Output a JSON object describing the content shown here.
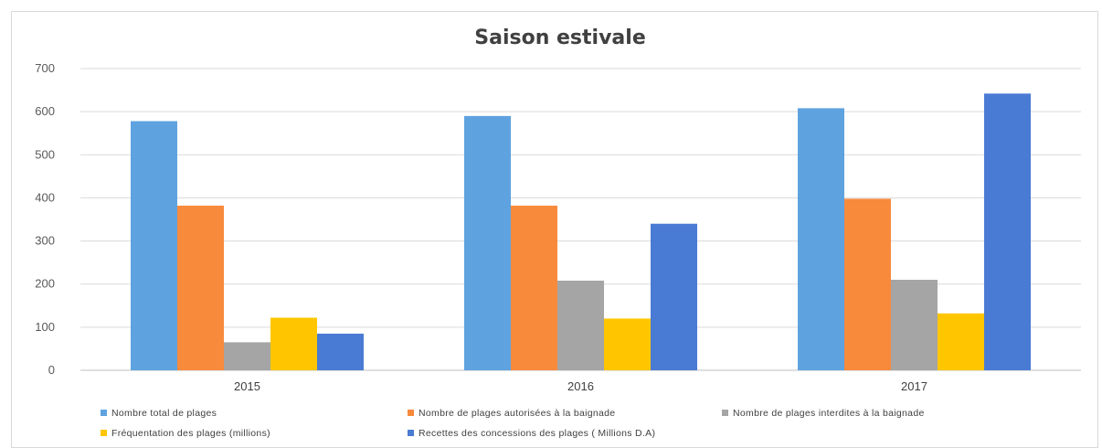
{
  "chart_data": {
    "type": "bar",
    "title": "Saison estivale",
    "categories": [
      "2015",
      "2016",
      "2017"
    ],
    "ylim": [
      0,
      700
    ],
    "yticks": [
      0,
      100,
      200,
      300,
      400,
      500,
      600,
      700
    ],
    "grid": true,
    "legend_position": "bottom",
    "series": [
      {
        "name": "Nombre total de plages",
        "color": "#5fa2e0",
        "values": [
          578,
          590,
          608
        ]
      },
      {
        "name": "Nombre de plages autorisées à la baignade",
        "color": "#f88a3c",
        "values": [
          382,
          382,
          398
        ]
      },
      {
        "name": "Nombre de plages interdites à la baignade",
        "color": "#a5a5a5",
        "values": [
          65,
          208,
          210
        ]
      },
      {
        "name": "Fréquentation des plages (millions)",
        "color": "#ffc600",
        "values": [
          122,
          120,
          132
        ]
      },
      {
        "name": "Recettes des concessions des plages ( Millions D.A)",
        "color": "#4a7bd4",
        "values": [
          85,
          340,
          642
        ]
      }
    ]
  }
}
